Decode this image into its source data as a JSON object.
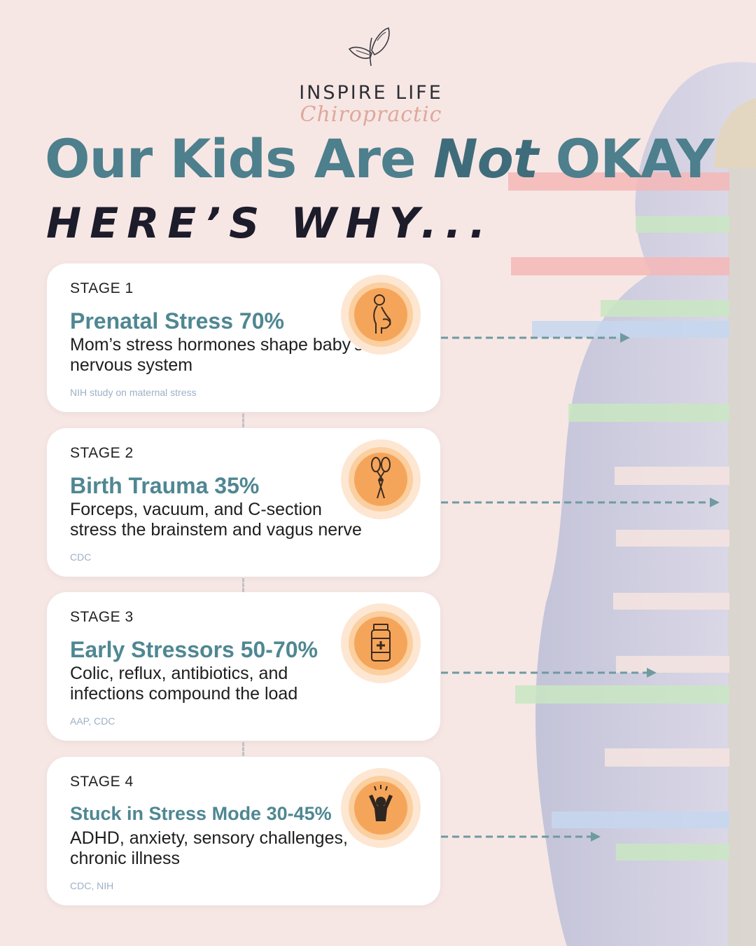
{
  "brand": {
    "name": "INSPIRE LIFE",
    "script": "Chiropractic"
  },
  "headline": {
    "part1": "Our Kids Are ",
    "emphasis": "Not",
    "part2": " OKAY",
    "sub": "HERE’S WHY..."
  },
  "stages": [
    {
      "label": "STAGE 1",
      "title": "Prenatal Stress 70%",
      "desc": "Mom’s stress hormones shape baby’s nervous system",
      "source": "NIH study on maternal stress",
      "icon": "pregnant-woman-icon"
    },
    {
      "label": "STAGE 2",
      "title": "Birth Trauma 35%",
      "desc": "Forceps, vacuum, and C-section stress the brainstem and vagus nerve",
      "source": "CDC",
      "icon": "forceps-icon"
    },
    {
      "label": "STAGE 3",
      "title": "Early Stressors 50-70%",
      "desc": "Colic, reflux, antibiotics, and infections compound the load",
      "source": "AAP, CDC",
      "icon": "medicine-bottle-icon"
    },
    {
      "label": "STAGE 4",
      "title": "Stuck in Stress Mode 30-45%",
      "desc": "ADHD, anxiety, sensory challenges, chronic illness",
      "source": "CDC, NIH",
      "icon": "stressed-child-icon"
    }
  ],
  "colors": {
    "background": "#f6e7e5",
    "headline": "#4d7f8d",
    "title": "#4f8792",
    "icon_orange": "#f5a55a",
    "arrow": "#6f9aa2"
  }
}
